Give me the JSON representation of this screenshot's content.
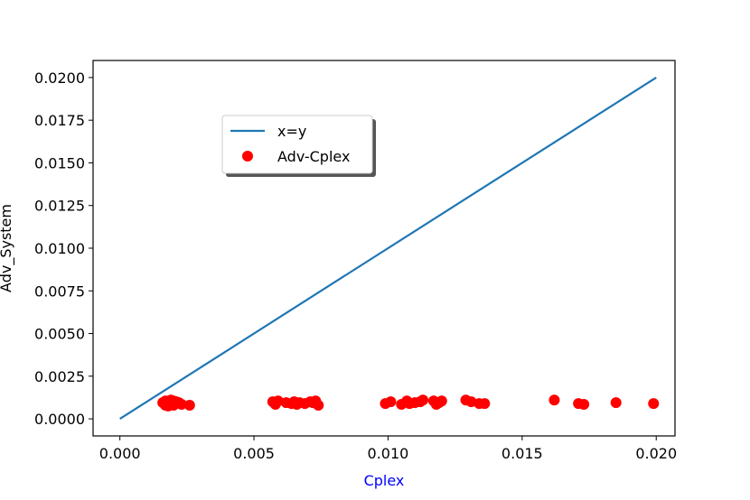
{
  "chart_data": {
    "type": "scatter",
    "title": "",
    "xlabel": "Cplex",
    "ylabel": "Adv_System",
    "xlabel_color": "#0000ff",
    "ylabel_color": "#000000",
    "xlim": [
      -0.001,
      0.0207
    ],
    "ylim": [
      -0.001,
      0.021
    ],
    "x_ticks": [
      0.0,
      0.005,
      0.01,
      0.015,
      0.02
    ],
    "x_tick_labels": [
      "0.000",
      "0.005",
      "0.010",
      "0.015",
      "0.020"
    ],
    "y_ticks": [
      0.0,
      0.0025,
      0.005,
      0.0075,
      0.01,
      0.0125,
      0.015,
      0.0175,
      0.02
    ],
    "y_tick_labels": [
      "0.0000",
      "0.0025",
      "0.0050",
      "0.0075",
      "0.0100",
      "0.0125",
      "0.0150",
      "0.0175",
      "0.0200"
    ],
    "grid": false,
    "legend_placement": "upper-left-center",
    "series": [
      {
        "name": "x=y",
        "kind": "line",
        "color": "#1f77b4",
        "x": [
          0.0,
          0.02
        ],
        "y": [
          0.0,
          0.02
        ]
      },
      {
        "name": "Adv-Cplex",
        "kind": "scatter",
        "color": "#ff0000",
        "x": [
          0.0016,
          0.0017,
          0.0017,
          0.0018,
          0.0018,
          0.0018,
          0.0019,
          0.0019,
          0.0019,
          0.002,
          0.002,
          0.0021,
          0.0021,
          0.0022,
          0.0023,
          0.0026,
          0.0057,
          0.0058,
          0.0059,
          0.0062,
          0.0064,
          0.0065,
          0.0066,
          0.0067,
          0.0069,
          0.0071,
          0.0072,
          0.0073,
          0.0074,
          0.0099,
          0.0101,
          0.0105,
          0.0107,
          0.0108,
          0.011,
          0.0112,
          0.0113,
          0.0117,
          0.0118,
          0.0119,
          0.012,
          0.0129,
          0.0131,
          0.0134,
          0.0136,
          0.0162,
          0.0171,
          0.0173,
          0.0185,
          0.0199
        ],
        "y": [
          0.00095,
          0.0008,
          0.00105,
          0.0009,
          0.00075,
          0.001,
          0.00085,
          0.0011,
          0.00095,
          0.0008,
          0.00105,
          0.0009,
          0.001,
          0.00095,
          0.00085,
          0.0008,
          0.001,
          0.00085,
          0.00105,
          0.00095,
          0.0009,
          0.001,
          0.00085,
          0.00095,
          0.0009,
          0.001,
          0.00095,
          0.00105,
          0.0008,
          0.0009,
          0.001,
          0.00085,
          0.00105,
          0.0009,
          0.00095,
          0.001,
          0.0011,
          0.00105,
          0.00085,
          0.00095,
          0.00105,
          0.0011,
          0.001,
          0.0009,
          0.0009,
          0.0011,
          0.0009,
          0.00085,
          0.00095,
          0.0009
        ]
      }
    ]
  }
}
